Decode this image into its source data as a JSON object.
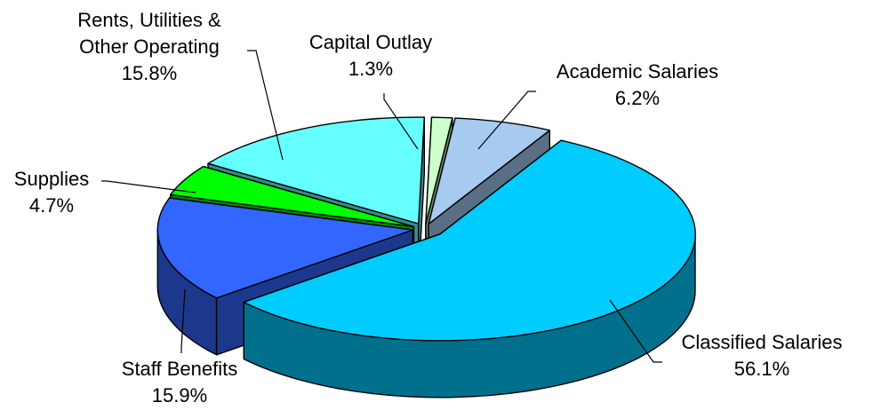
{
  "chart_data": {
    "type": "pie",
    "style": "3d-exploded",
    "title": "",
    "legend": "none",
    "slices": [
      {
        "label": "Academic Salaries",
        "value": 6.2,
        "value_label": "6.2%",
        "color": "#a6caf0"
      },
      {
        "label": "Classified Salaries",
        "value": 56.1,
        "value_label": "56.1%",
        "color": "#00ccff"
      },
      {
        "label": "Staff Benefits",
        "value": 15.9,
        "value_label": "15.9%",
        "color": "#3366ff"
      },
      {
        "label": "Supplies",
        "value": 4.7,
        "value_label": "4.7%",
        "color": "#00ff00"
      },
      {
        "label": "Rents, Utilities & Other Operating",
        "value": 15.8,
        "value_label": "15.8%",
        "color": "#66ffff"
      },
      {
        "label": "Capital Outlay",
        "value": 1.3,
        "value_label": "1.3%",
        "color": "#ccffcc"
      }
    ]
  }
}
